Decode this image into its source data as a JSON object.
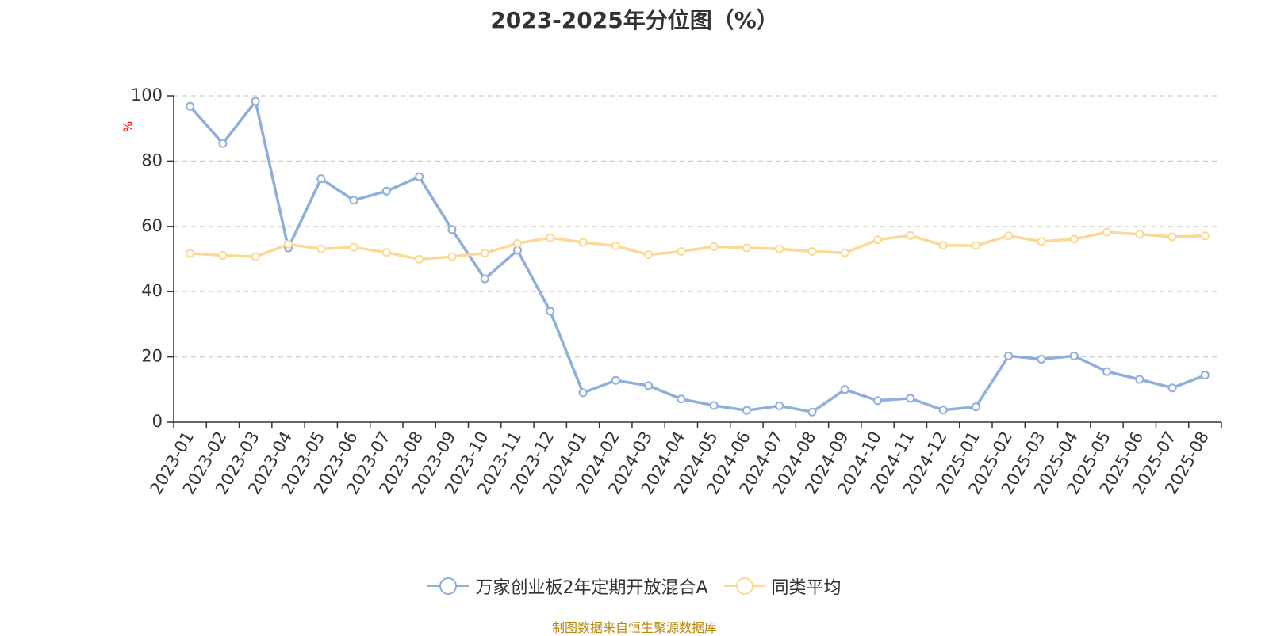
{
  "colors": {
    "series_fund": "#8eaedb",
    "series_avg": "#fcd993",
    "axis": "#333333",
    "grid": "#cccccc",
    "yunit": "#ff0000",
    "source": "#b8860b"
  },
  "chart_data": {
    "type": "line",
    "title": "2023-2025年分位图（%）",
    "ylabel": "%",
    "ylim": [
      0,
      100
    ],
    "yticks": [
      0,
      20,
      40,
      60,
      80,
      100
    ],
    "grid": true,
    "legend_position": "bottom-center",
    "categories": [
      "2023-01",
      "2023-02",
      "2023-03",
      "2023-04",
      "2023-05",
      "2023-06",
      "2023-07",
      "2023-08",
      "2023-09",
      "2023-10",
      "2023-11",
      "2023-12",
      "2024-01",
      "2024-02",
      "2024-03",
      "2024-04",
      "2024-05",
      "2024-06",
      "2024-07",
      "2024-08",
      "2024-09",
      "2024-10",
      "2024-11",
      "2024-12",
      "2025-01",
      "2025-02",
      "2025-03",
      "2025-04",
      "2025-05",
      "2025-06",
      "2025-07",
      "2025-08"
    ],
    "series": [
      {
        "name": "万家创业板2年定期开放混合A",
        "color": "#8eaedb",
        "values": [
          96.8,
          85.4,
          98.3,
          53.4,
          74.6,
          68.0,
          70.8,
          75.2,
          59.0,
          43.9,
          52.7,
          34.0,
          9.0,
          12.8,
          11.2,
          7.1,
          5.1,
          3.6,
          5.0,
          3.1,
          10.0,
          6.6,
          7.3,
          3.7,
          4.7,
          20.3,
          19.3,
          20.3,
          15.5,
          13.1,
          10.5,
          14.4
        ]
      },
      {
        "name": "同类平均",
        "color": "#fcd993",
        "values": [
          51.7,
          51.1,
          50.7,
          54.5,
          53.1,
          53.6,
          52.0,
          49.9,
          50.7,
          51.8,
          54.8,
          56.5,
          55.1,
          54.0,
          51.3,
          52.3,
          53.8,
          53.4,
          53.1,
          52.3,
          51.9,
          55.9,
          57.2,
          54.2,
          54.1,
          57.1,
          55.4,
          56.1,
          58.2,
          57.6,
          56.8,
          57.1
        ]
      }
    ]
  },
  "footer": {
    "source": "制图数据来自恒生聚源数据库"
  }
}
